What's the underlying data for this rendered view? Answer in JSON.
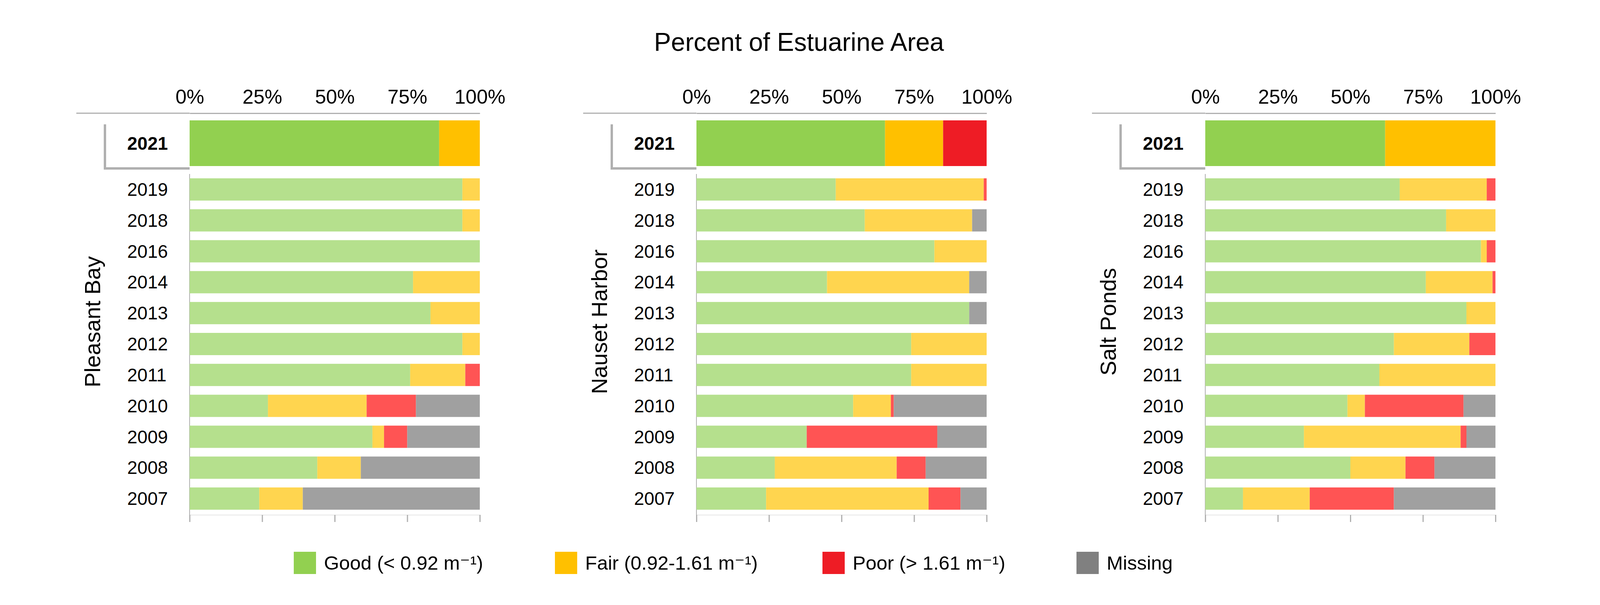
{
  "title": "Percent of Estuarine Area",
  "chart_data": [
    {
      "type": "bar",
      "orientation": "horizontal",
      "stacked": true,
      "ylabel": "Pleasant Bay",
      "categories": [
        "2021",
        "2019",
        "2018",
        "2016",
        "2014",
        "2013",
        "2012",
        "2011",
        "2010",
        "2009",
        "2008",
        "2007"
      ],
      "xlim": [
        0,
        100
      ],
      "xticks": [
        {
          "value": 0,
          "label": "0%"
        },
        {
          "value": 25,
          "label": "25%"
        },
        {
          "value": 50,
          "label": "50%"
        },
        {
          "value": 75,
          "label": "75%"
        },
        {
          "value": 100,
          "label": "100%"
        }
      ],
      "series": [
        {
          "name": "Good (< 0.92 m⁻¹)",
          "color": "#92d050",
          "colors": [
            "#92d050",
            "#b5e08d",
            "#b5e08d",
            "#b5e08d",
            "#b5e08d",
            "#b5e08d",
            "#b5e08d",
            "#b5e08d",
            "#b5e08d",
            "#b5e08d",
            "#b5e08d",
            "#b5e08d"
          ],
          "values": [
            86,
            94,
            94,
            100,
            77,
            83,
            94,
            76,
            27,
            63,
            44,
            24
          ]
        },
        {
          "name": "Fair (0.92-1.61 m⁻¹)",
          "color": "#ffc000",
          "colors": [
            "#ffc000",
            "#ffd54f",
            "#ffd54f",
            "#ffd54f",
            "#ffd54f",
            "#ffd54f",
            "#ffd54f",
            "#ffd54f",
            "#ffd54f",
            "#ffd54f",
            "#ffd54f",
            "#ffd54f"
          ],
          "values": [
            14,
            6,
            6,
            0,
            23,
            17,
            6,
            19,
            34,
            4,
            15,
            15
          ]
        },
        {
          "name": "Poor (> 1.61 m⁻¹)",
          "color": "#ee1c25",
          "colors": [
            "#ee1c25",
            "#ff5454",
            "#ff5454",
            "#ff5454",
            "#ff5454",
            "#ff5454",
            "#ff5454",
            "#ff5454",
            "#ff5454",
            "#ff5454",
            "#ff5454",
            "#ff5454"
          ],
          "values": [
            0,
            0,
            0,
            0,
            0,
            0,
            0,
            5,
            17,
            8,
            0,
            0
          ]
        },
        {
          "name": "Missing",
          "color": "#808080",
          "colors": [
            "#808080",
            "#a0a0a0",
            "#a0a0a0",
            "#a0a0a0",
            "#a0a0a0",
            "#a0a0a0",
            "#a0a0a0",
            "#a0a0a0",
            "#a0a0a0",
            "#a0a0a0",
            "#a0a0a0",
            "#a0a0a0"
          ],
          "values": [
            0,
            0,
            0,
            0,
            0,
            0,
            0,
            0,
            22,
            25,
            41,
            61
          ]
        }
      ]
    },
    {
      "type": "bar",
      "orientation": "horizontal",
      "stacked": true,
      "ylabel": "Nauset Harbor",
      "categories": [
        "2021",
        "2019",
        "2018",
        "2016",
        "2014",
        "2013",
        "2012",
        "2011",
        "2010",
        "2009",
        "2008",
        "2007"
      ],
      "xlim": [
        0,
        100
      ],
      "xticks": [
        {
          "value": 0,
          "label": "0%"
        },
        {
          "value": 25,
          "label": "25%"
        },
        {
          "value": 50,
          "label": "50%"
        },
        {
          "value": 75,
          "label": "75%"
        },
        {
          "value": 100,
          "label": "100%"
        }
      ],
      "series": [
        {
          "name": "Good (< 0.92 m⁻¹)",
          "color": "#92d050",
          "colors": [
            "#92d050",
            "#b5e08d",
            "#b5e08d",
            "#b5e08d",
            "#b5e08d",
            "#b5e08d",
            "#b5e08d",
            "#b5e08d",
            "#b5e08d",
            "#b5e08d",
            "#b5e08d",
            "#b5e08d"
          ],
          "values": [
            65,
            48,
            58,
            82,
            45,
            94,
            74,
            74,
            54,
            38,
            27,
            24
          ]
        },
        {
          "name": "Fair (0.92-1.61 m⁻¹)",
          "color": "#ffc000",
          "colors": [
            "#ffc000",
            "#ffd54f",
            "#ffd54f",
            "#ffd54f",
            "#ffd54f",
            "#ffd54f",
            "#ffd54f",
            "#ffd54f",
            "#ffd54f",
            "#ffd54f",
            "#ffd54f",
            "#ffd54f"
          ],
          "values": [
            20,
            51,
            37,
            18,
            49,
            0,
            26,
            26,
            13,
            0,
            42,
            56
          ]
        },
        {
          "name": "Poor (> 1.61 m⁻¹)",
          "color": "#ee1c25",
          "colors": [
            "#ee1c25",
            "#ff5454",
            "#ff5454",
            "#ff5454",
            "#ff5454",
            "#ff5454",
            "#ff5454",
            "#ff5454",
            "#ff5454",
            "#ff5454",
            "#ff5454",
            "#ff5454"
          ],
          "values": [
            15,
            1,
            0,
            0,
            0,
            0,
            0,
            0,
            1,
            45,
            10,
            11
          ]
        },
        {
          "name": "Missing",
          "color": "#808080",
          "colors": [
            "#808080",
            "#a0a0a0",
            "#a0a0a0",
            "#a0a0a0",
            "#a0a0a0",
            "#a0a0a0",
            "#a0a0a0",
            "#a0a0a0",
            "#a0a0a0",
            "#a0a0a0",
            "#a0a0a0",
            "#a0a0a0"
          ],
          "values": [
            0,
            0,
            5,
            0,
            6,
            6,
            0,
            0,
            32,
            17,
            21,
            9
          ]
        }
      ]
    },
    {
      "type": "bar",
      "orientation": "horizontal",
      "stacked": true,
      "ylabel": "Salt Ponds",
      "categories": [
        "2021",
        "2019",
        "2018",
        "2016",
        "2014",
        "2013",
        "2012",
        "2011",
        "2010",
        "2009",
        "2008",
        "2007"
      ],
      "xlim": [
        0,
        100
      ],
      "xticks": [
        {
          "value": 0,
          "label": "0%"
        },
        {
          "value": 25,
          "label": "25%"
        },
        {
          "value": 50,
          "label": "50%"
        },
        {
          "value": 75,
          "label": "75%"
        },
        {
          "value": 100,
          "label": "100%"
        }
      ],
      "series": [
        {
          "name": "Good (< 0.92 m⁻¹)",
          "color": "#92d050",
          "colors": [
            "#92d050",
            "#b5e08d",
            "#b5e08d",
            "#b5e08d",
            "#b5e08d",
            "#b5e08d",
            "#b5e08d",
            "#b5e08d",
            "#b5e08d",
            "#b5e08d",
            "#b5e08d",
            "#b5e08d"
          ],
          "values": [
            62,
            67,
            83,
            95,
            76,
            90,
            65,
            60,
            49,
            34,
            50,
            13
          ]
        },
        {
          "name": "Fair (0.92-1.61 m⁻¹)",
          "color": "#ffc000",
          "colors": [
            "#ffc000",
            "#ffd54f",
            "#ffd54f",
            "#ffd54f",
            "#ffd54f",
            "#ffd54f",
            "#ffd54f",
            "#ffd54f",
            "#ffd54f",
            "#ffd54f",
            "#ffd54f",
            "#ffd54f"
          ],
          "values": [
            38,
            30,
            17,
            2,
            23,
            10,
            26,
            40,
            6,
            54,
            19,
            23
          ]
        },
        {
          "name": "Poor (> 1.61 m⁻¹)",
          "color": "#ee1c25",
          "colors": [
            "#ee1c25",
            "#ff5454",
            "#ff5454",
            "#ff5454",
            "#ff5454",
            "#ff5454",
            "#ff5454",
            "#ff5454",
            "#ff5454",
            "#ff5454",
            "#ff5454",
            "#ff5454"
          ],
          "values": [
            0,
            3,
            0,
            3,
            1,
            0,
            9,
            0,
            34,
            2,
            10,
            29
          ]
        },
        {
          "name": "Missing",
          "color": "#808080",
          "colors": [
            "#808080",
            "#a0a0a0",
            "#a0a0a0",
            "#a0a0a0",
            "#a0a0a0",
            "#a0a0a0",
            "#a0a0a0",
            "#a0a0a0",
            "#a0a0a0",
            "#a0a0a0",
            "#a0a0a0",
            "#a0a0a0"
          ],
          "values": [
            0,
            0,
            0,
            0,
            0,
            0,
            0,
            0,
            11,
            10,
            21,
            35
          ]
        }
      ]
    }
  ]
}
